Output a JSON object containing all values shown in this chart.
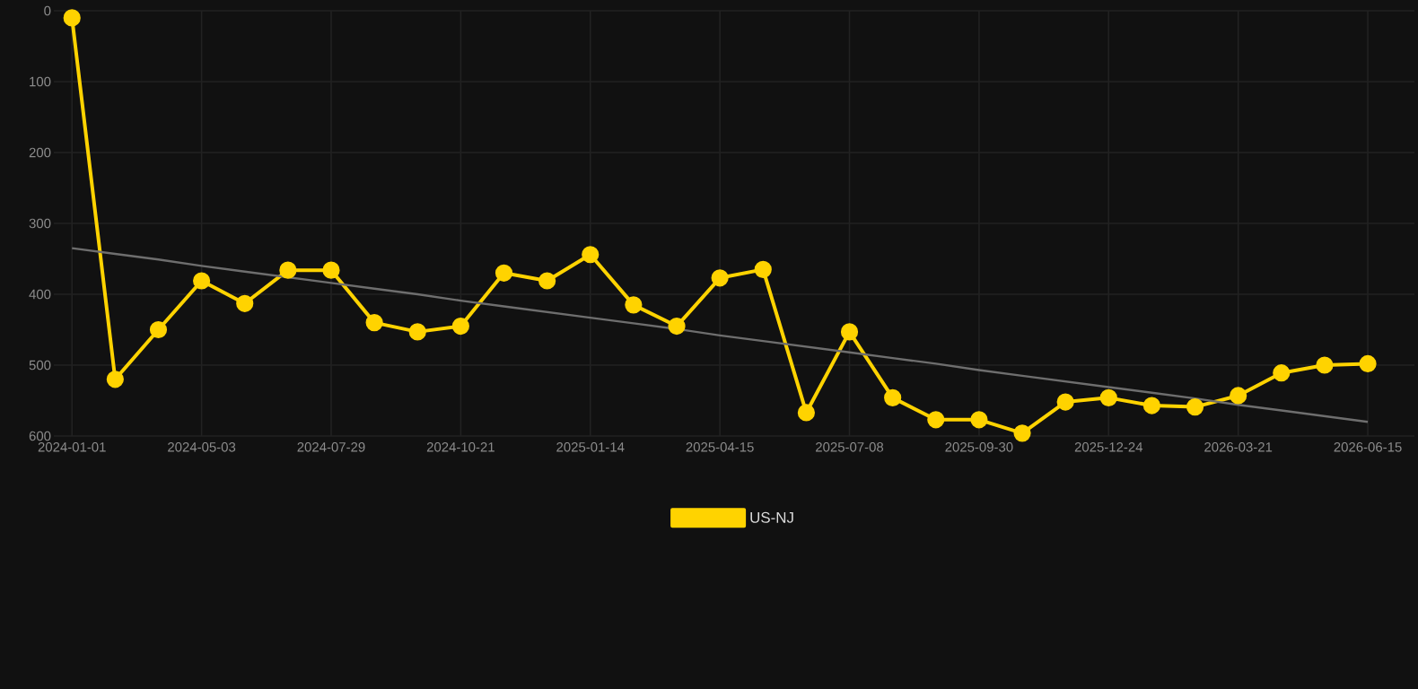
{
  "chart_data": {
    "type": "line",
    "categories": [
      "2024-01-01",
      null,
      null,
      "2024-05-03",
      null,
      null,
      "2024-07-29",
      null,
      null,
      "2024-10-21",
      null,
      null,
      "2025-01-14",
      null,
      null,
      "2025-04-15",
      null,
      null,
      "2025-07-08",
      null,
      null,
      "2025-09-30",
      null,
      null,
      "2025-12-24",
      null,
      null,
      "2026-03-21",
      null,
      null,
      "2026-06-15"
    ],
    "series": [
      {
        "name": "US-NJ",
        "color": "#ffd300",
        "marker": "circle",
        "values": [
          10,
          520,
          450,
          381,
          413,
          366,
          366,
          440,
          453,
          445,
          370,
          381,
          344,
          415,
          445,
          377,
          365,
          567,
          453,
          546,
          577,
          577,
          596,
          552,
          546,
          557,
          559,
          543,
          511,
          500,
          498
        ]
      },
      {
        "type": "line",
        "color": "#6e6e6e",
        "marker": "none",
        "values": [
          335,
          343,
          351,
          360,
          368,
          376,
          384,
          392,
          400,
          409,
          417,
          425,
          433,
          441,
          449,
          458,
          466,
          474,
          482,
          490,
          498,
          507,
          515,
          523,
          531,
          539,
          547,
          556,
          564,
          572,
          580
        ]
      }
    ],
    "ylim": [
      600,
      0
    ],
    "yticks": [
      0,
      100,
      200,
      300,
      400,
      500,
      600
    ],
    "grid": true,
    "legend": "bottom"
  }
}
